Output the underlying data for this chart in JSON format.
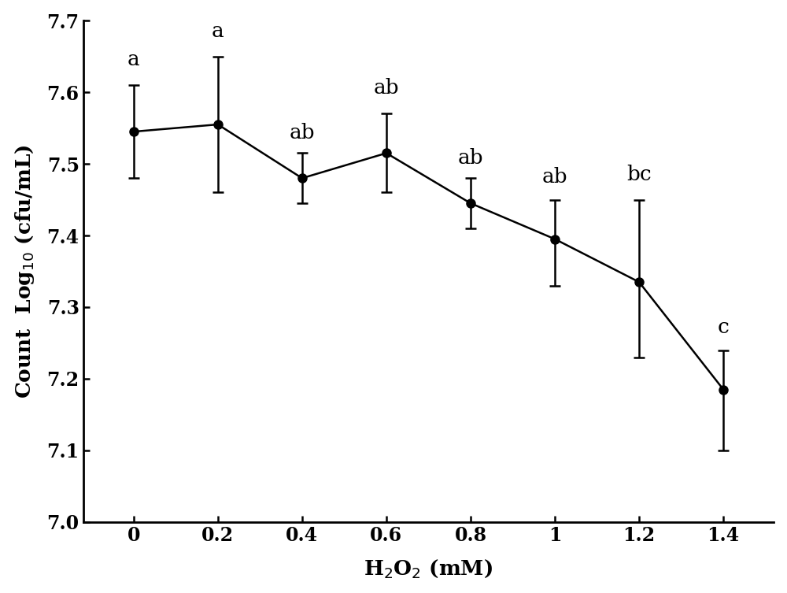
{
  "x": [
    0,
    0.2,
    0.4,
    0.6,
    0.8,
    1.0,
    1.2,
    1.4
  ],
  "y": [
    7.545,
    7.555,
    7.48,
    7.515,
    7.445,
    7.395,
    7.335,
    7.185
  ],
  "yerr_upper": [
    0.065,
    0.095,
    0.035,
    0.055,
    0.035,
    0.055,
    0.115,
    0.055
  ],
  "yerr_lower": [
    0.065,
    0.095,
    0.035,
    0.055,
    0.035,
    0.065,
    0.105,
    0.085
  ],
  "labels": [
    "a",
    "a",
    "ab",
    "ab",
    "ab",
    "ab",
    "bc",
    "c"
  ],
  "label_offsets": [
    0.022,
    0.022,
    0.015,
    0.022,
    0.015,
    0.018,
    0.022,
    0.018
  ],
  "xlabel": "H$_2$O$_2$ (mM)",
  "ylabel": "Count  Log$_{10}$ (cfu/mL)",
  "ylim": [
    7.0,
    7.7
  ],
  "yticks": [
    7.0,
    7.1,
    7.2,
    7.3,
    7.4,
    7.5,
    7.6,
    7.7
  ],
  "line_color": "#000000",
  "marker_color": "#000000",
  "marker_size": 8,
  "line_width": 1.8,
  "label_fontsize": 19,
  "tick_fontsize": 17,
  "annotation_fontsize": 19,
  "background_color": "#ffffff",
  "capsize": 5,
  "xlim": [
    -0.12,
    1.52
  ]
}
